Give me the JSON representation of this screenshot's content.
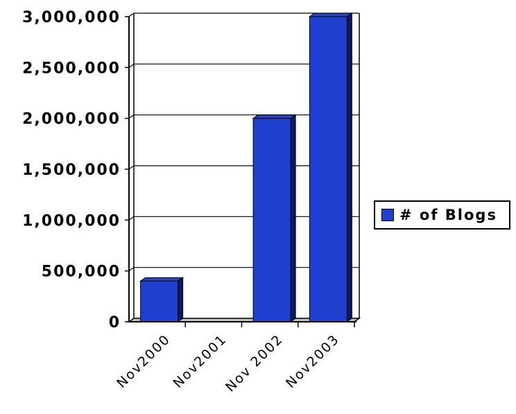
{
  "chart_data": {
    "type": "bar",
    "categories": [
      "Nov2000",
      "Nov2001",
      "Nov 2002",
      "Nov2003"
    ],
    "series": [
      {
        "name": "# of Blogs",
        "values": [
          400000,
          0,
          2000000,
          3000000
        ]
      }
    ],
    "yticks": [
      "0",
      "500,000",
      "1,000,000",
      "1,500,000",
      "2,000,000",
      "2,500,000",
      "3,000,000"
    ],
    "ylim": [
      0,
      3000000
    ],
    "grid": true,
    "legend_position": "right",
    "bar_color": "#1f3fcf",
    "bar_side_color": "#0b1a66",
    "bar_top_color": "#2a45b8"
  }
}
